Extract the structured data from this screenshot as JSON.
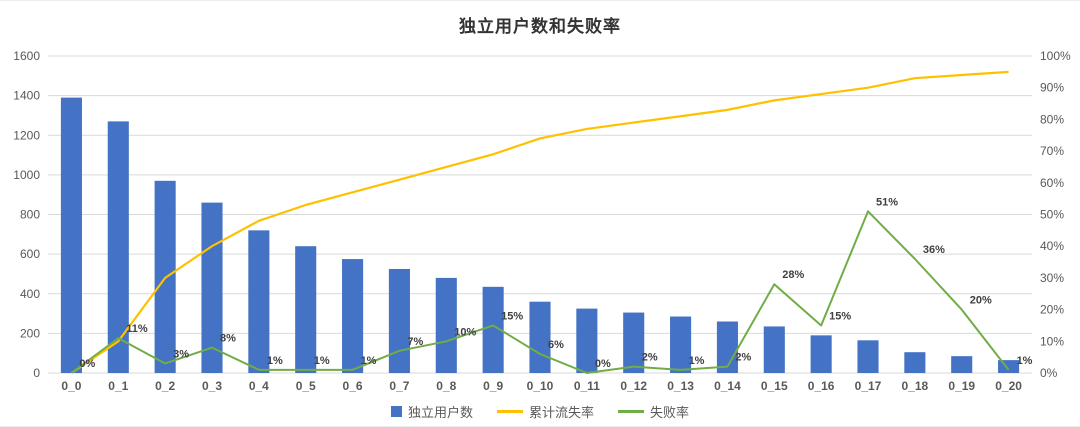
{
  "title": "独立用户数和失败率",
  "legend": [
    {
      "label": "独立用户数",
      "color": "#4472C4",
      "kind": "bar"
    },
    {
      "label": "累计流失率",
      "color": "#FFC000",
      "kind": "line"
    },
    {
      "label": "失败率",
      "color": "#70AD47",
      "kind": "line"
    }
  ],
  "chart_data": {
    "type": "bar+line combo",
    "title": "独立用户数和失败率",
    "categories": [
      "0_0",
      "0_1",
      "0_2",
      "0_3",
      "0_4",
      "0_5",
      "0_6",
      "0_7",
      "0_8",
      "0_9",
      "0_10",
      "0_11",
      "0_12",
      "0_13",
      "0_14",
      "0_15",
      "0_16",
      "0_17",
      "0_18",
      "0_19",
      "0_20"
    ],
    "series": [
      {
        "name": "独立用户数",
        "type": "bar",
        "axis": "left",
        "color": "#4472C4",
        "values": [
          1390,
          1270,
          970,
          860,
          720,
          640,
          575,
          525,
          480,
          435,
          360,
          325,
          305,
          285,
          260,
          235,
          190,
          165,
          105,
          85,
          65
        ]
      },
      {
        "name": "累计流失率",
        "type": "line",
        "axis": "right",
        "color": "#FFC000",
        "values": [
          0,
          10,
          30,
          40,
          48,
          53,
          57,
          61,
          65,
          69,
          74,
          77,
          79,
          81,
          83,
          86,
          88,
          90,
          93,
          94,
          95
        ]
      },
      {
        "name": "失败率",
        "type": "line",
        "axis": "right",
        "color": "#70AD47",
        "values": [
          0,
          11,
          3,
          8,
          1,
          1,
          1,
          7,
          10,
          15,
          6,
          0,
          2,
          1,
          2,
          28,
          15,
          51,
          36,
          20,
          1
        ],
        "point_labels": [
          "0%",
          "11%",
          "3%",
          "8%",
          "1%",
          "1%",
          "1%",
          "7%",
          "10%",
          "15%",
          "6%",
          "0%",
          "2%",
          "1%",
          "2%",
          "28%",
          "15%",
          "51%",
          "36%",
          "20%",
          "1%"
        ]
      }
    ],
    "left_axis": {
      "min": 0,
      "max": 1600,
      "step": 200,
      "ticks": [
        "0",
        "200",
        "400",
        "600",
        "800",
        "1000",
        "1200",
        "1400",
        "1600"
      ]
    },
    "right_axis": {
      "min": 0,
      "max": 100,
      "step": 10,
      "ticks": [
        "0%",
        "10%",
        "20%",
        "30%",
        "40%",
        "50%",
        "60%",
        "70%",
        "80%",
        "90%",
        "100%"
      ]
    },
    "grid": true,
    "legend_position": "bottom"
  },
  "colors": {
    "grid": "#d9d9d9",
    "axis_text": "#595959",
    "label_text": "#404040",
    "background": "#ffffff"
  }
}
